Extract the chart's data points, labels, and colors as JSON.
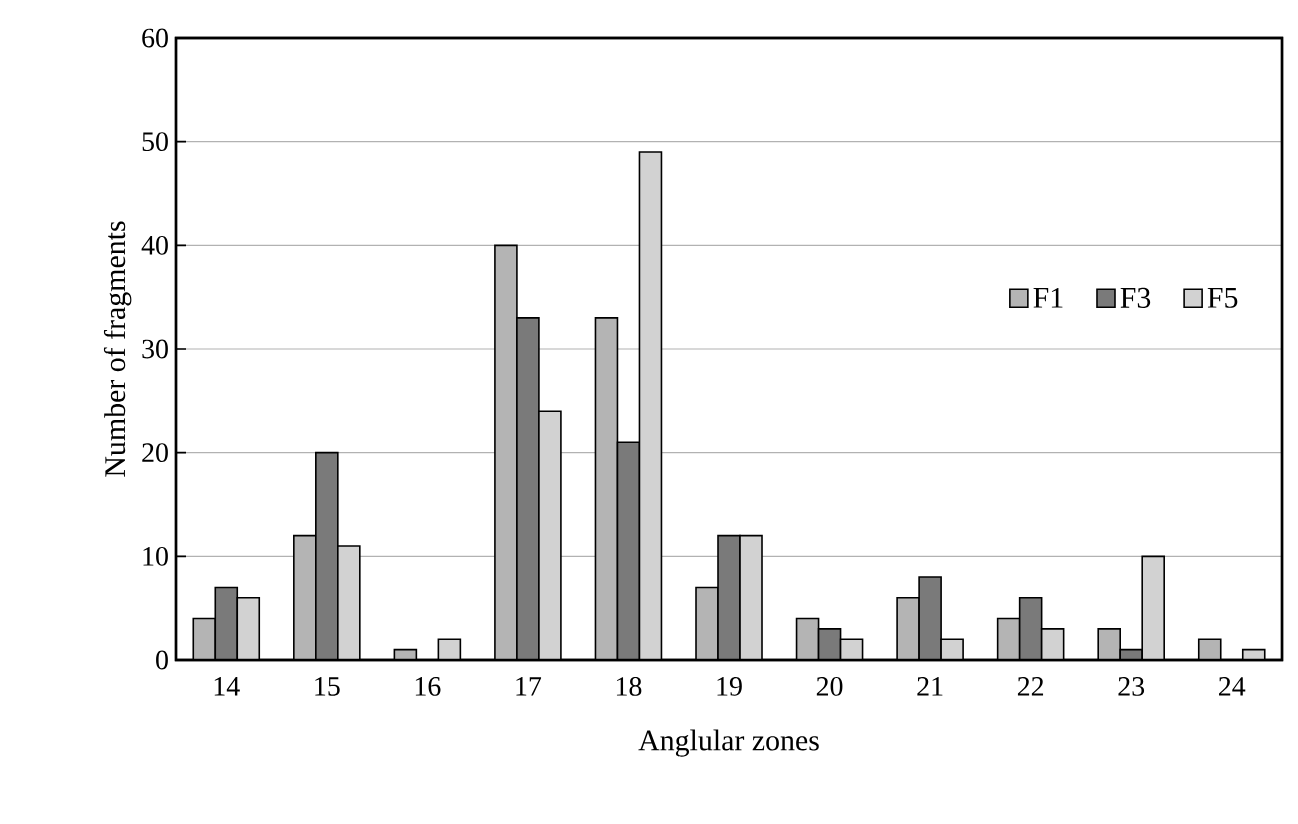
{
  "chart_data": {
    "type": "bar",
    "xlabel": "Anglular zones",
    "ylabel": "Number of fragments",
    "categories": [
      "14",
      "15",
      "16",
      "17",
      "18",
      "19",
      "20",
      "21",
      "22",
      "23",
      "24"
    ],
    "series": [
      {
        "name": "F1",
        "color": "#b4b4b4",
        "values": [
          4,
          12,
          1,
          40,
          33,
          7,
          4,
          6,
          4,
          3,
          2
        ]
      },
      {
        "name": "F3",
        "color": "#7a7a7a",
        "values": [
          7,
          20,
          null,
          33,
          21,
          12,
          3,
          8,
          6,
          1,
          null
        ]
      },
      {
        "name": "F5",
        "color": "#d2d2d2",
        "values": [
          6,
          11,
          2,
          24,
          49,
          12,
          2,
          2,
          3,
          10,
          1
        ]
      }
    ],
    "ylim": [
      0,
      60
    ],
    "yticks": [
      0,
      10,
      20,
      30,
      40,
      50,
      60
    ],
    "grid": "y",
    "legend": "right"
  }
}
